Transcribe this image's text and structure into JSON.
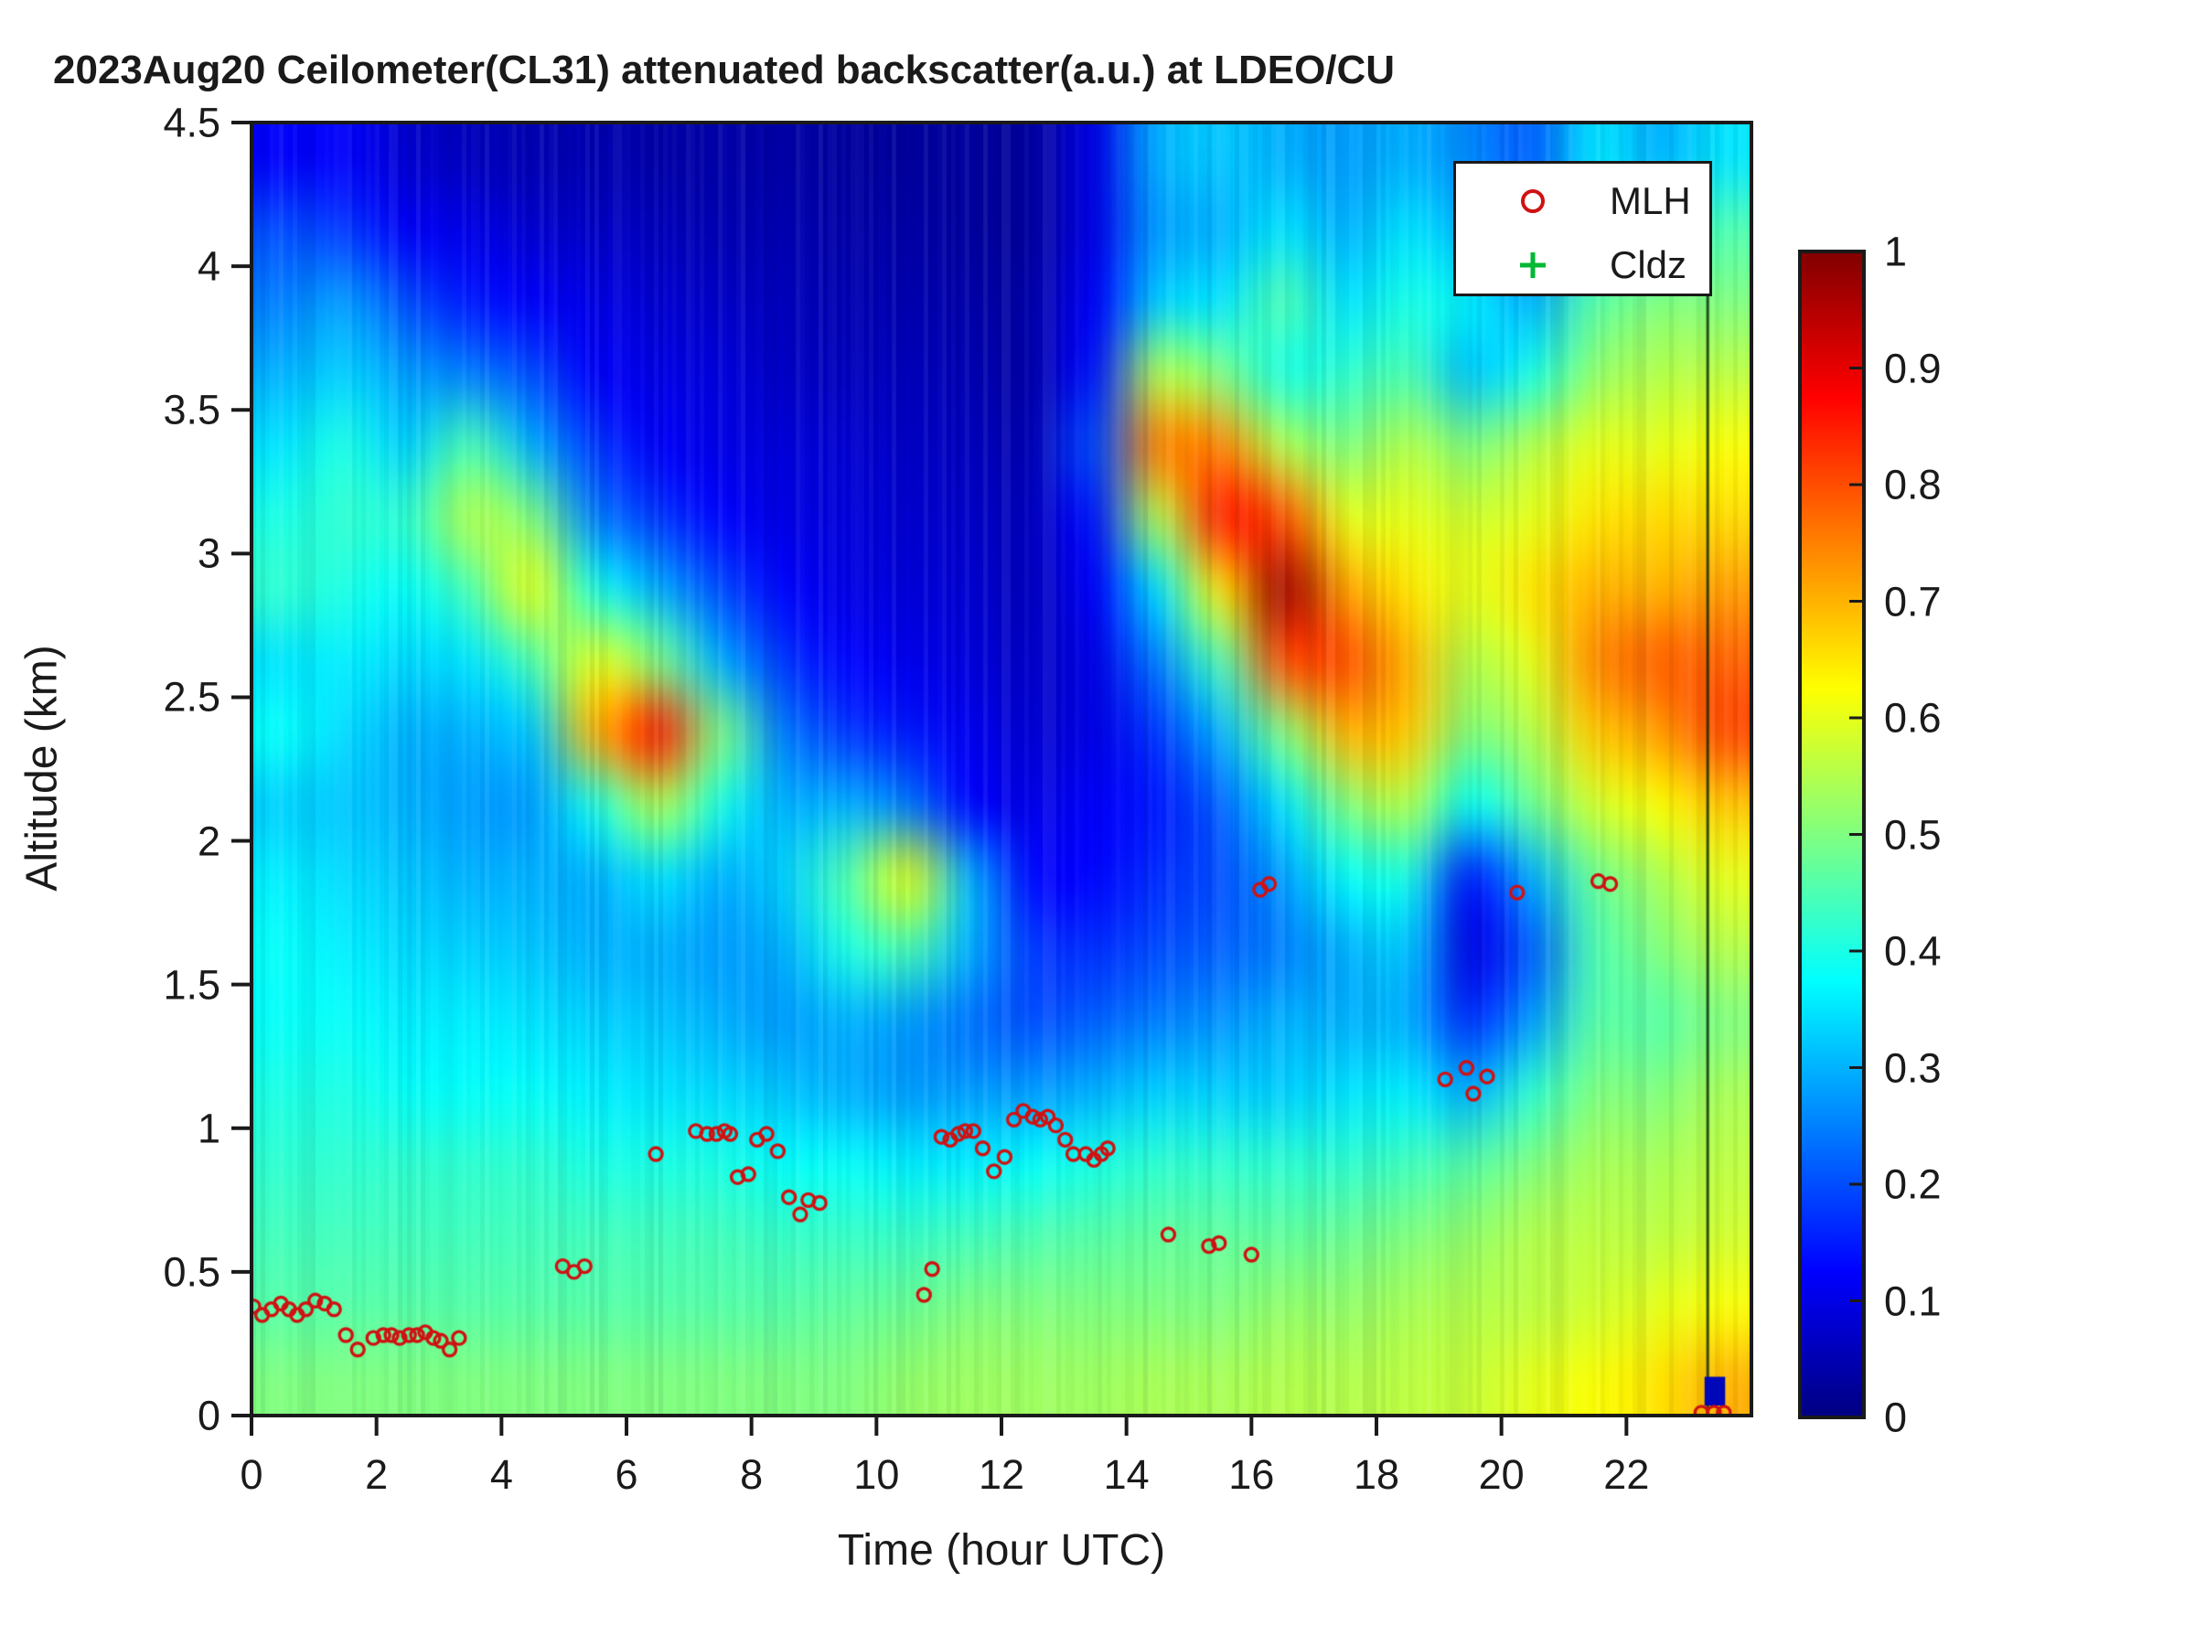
{
  "chart_data": {
    "type": "heatmap",
    "title": "2023Aug20 Ceilometer(CL31) attenuated backscatter(a.u.) at LDEO/CU",
    "xlabel": "Time (hour UTC)",
    "ylabel": "Altitude (km)",
    "xlim": [
      0,
      24
    ],
    "ylim": [
      0,
      4.5
    ],
    "x_ticks": [
      0,
      2,
      4,
      6,
      8,
      10,
      12,
      14,
      16,
      18,
      20,
      22
    ],
    "x_tick_labels": [
      "0",
      "2",
      "4",
      "6",
      "8",
      "10",
      "12",
      "14",
      "16",
      "18",
      "20",
      "22"
    ],
    "y_ticks": [
      0,
      0.5,
      1,
      1.5,
      2,
      2.5,
      3,
      3.5,
      4,
      4.5
    ],
    "y_tick_labels": [
      "0",
      "0.5",
      "1",
      "1.5",
      "2",
      "2.5",
      "3",
      "3.5",
      "4",
      "4.5"
    ],
    "grid": false,
    "colormap": "jet",
    "colorbar": {
      "min": 0,
      "max": 1,
      "ticks": [
        0,
        0.1,
        0.2,
        0.3,
        0.4,
        0.5,
        0.6,
        0.7,
        0.8,
        0.9,
        1
      ],
      "tick_labels": [
        "0",
        "0.1",
        "0.2",
        "0.3",
        "0.4",
        "0.5",
        "0.6",
        "0.7",
        "0.8",
        "0.9",
        "1"
      ]
    },
    "heatmap": {
      "note": "attenuated backscatter (a.u.) on 0-1 scale; 24 hourly columns (0-24 h UTC) x 18 altitude bins (4.5 km down to 0 km, 0.25 km steps, top first)",
      "hour_bin_edges": [
        0,
        1,
        2,
        3,
        4,
        5,
        6,
        7,
        8,
        9,
        10,
        11,
        12,
        13,
        14,
        15,
        16,
        17,
        18,
        19,
        20,
        21,
        22,
        23,
        24
      ],
      "altitude_bin_top_km": 4.5,
      "altitude_bin_step_km": 0.25,
      "columns_top_to_bottom": [
        [
          0.12,
          0.2,
          0.25,
          0.3,
          0.35,
          0.4,
          0.42,
          0.35,
          0.38,
          0.33,
          0.36,
          0.38,
          0.38,
          0.4,
          0.42,
          0.44,
          0.46,
          0.5
        ],
        [
          0.12,
          0.18,
          0.28,
          0.33,
          0.4,
          0.42,
          0.4,
          0.36,
          0.34,
          0.32,
          0.34,
          0.36,
          0.38,
          0.4,
          0.42,
          0.44,
          0.46,
          0.5
        ],
        [
          0.08,
          0.12,
          0.2,
          0.28,
          0.33,
          0.42,
          0.38,
          0.34,
          0.3,
          0.3,
          0.32,
          0.34,
          0.36,
          0.38,
          0.42,
          0.44,
          0.46,
          0.5
        ],
        [
          0.06,
          0.1,
          0.15,
          0.25,
          0.45,
          0.55,
          0.45,
          0.35,
          0.3,
          0.28,
          0.3,
          0.33,
          0.36,
          0.38,
          0.42,
          0.44,
          0.46,
          0.5
        ],
        [
          0.05,
          0.08,
          0.12,
          0.2,
          0.3,
          0.5,
          0.6,
          0.45,
          0.32,
          0.28,
          0.3,
          0.32,
          0.35,
          0.38,
          0.42,
          0.44,
          0.46,
          0.5
        ],
        [
          0.05,
          0.07,
          0.1,
          0.12,
          0.18,
          0.25,
          0.4,
          0.6,
          0.7,
          0.4,
          0.3,
          0.3,
          0.33,
          0.36,
          0.4,
          0.44,
          0.46,
          0.5
        ],
        [
          0.04,
          0.06,
          0.08,
          0.1,
          0.12,
          0.18,
          0.3,
          0.5,
          0.85,
          0.55,
          0.35,
          0.3,
          0.32,
          0.35,
          0.4,
          0.44,
          0.46,
          0.5
        ],
        [
          0.04,
          0.05,
          0.07,
          0.09,
          0.1,
          0.13,
          0.2,
          0.3,
          0.5,
          0.4,
          0.3,
          0.28,
          0.3,
          0.34,
          0.4,
          0.44,
          0.46,
          0.5
        ],
        [
          0.04,
          0.05,
          0.06,
          0.07,
          0.09,
          0.1,
          0.13,
          0.18,
          0.25,
          0.3,
          0.33,
          0.3,
          0.28,
          0.32,
          0.38,
          0.43,
          0.46,
          0.5
        ],
        [
          0.03,
          0.04,
          0.05,
          0.06,
          0.08,
          0.09,
          0.1,
          0.13,
          0.18,
          0.3,
          0.45,
          0.4,
          0.3,
          0.3,
          0.38,
          0.43,
          0.47,
          0.5
        ],
        [
          0.03,
          0.04,
          0.05,
          0.06,
          0.07,
          0.08,
          0.09,
          0.11,
          0.15,
          0.25,
          0.6,
          0.45,
          0.28,
          0.28,
          0.36,
          0.43,
          0.48,
          0.52
        ],
        [
          0.03,
          0.03,
          0.04,
          0.05,
          0.06,
          0.07,
          0.08,
          0.09,
          0.11,
          0.13,
          0.3,
          0.3,
          0.24,
          0.28,
          0.36,
          0.44,
          0.5,
          0.53
        ],
        [
          0.03,
          0.03,
          0.04,
          0.04,
          0.05,
          0.06,
          0.06,
          0.07,
          0.08,
          0.1,
          0.13,
          0.18,
          0.2,
          0.28,
          0.38,
          0.45,
          0.5,
          0.53
        ],
        [
          0.1,
          0.1,
          0.12,
          0.15,
          0.2,
          0.15,
          0.12,
          0.1,
          0.1,
          0.12,
          0.13,
          0.17,
          0.22,
          0.3,
          0.4,
          0.46,
          0.5,
          0.53
        ],
        [
          0.3,
          0.28,
          0.33,
          0.55,
          0.75,
          0.55,
          0.35,
          0.25,
          0.18,
          0.15,
          0.17,
          0.2,
          0.25,
          0.33,
          0.42,
          0.47,
          0.5,
          0.54
        ],
        [
          0.32,
          0.3,
          0.35,
          0.5,
          0.75,
          0.85,
          0.65,
          0.45,
          0.3,
          0.22,
          0.2,
          0.22,
          0.27,
          0.33,
          0.42,
          0.47,
          0.5,
          0.54
        ],
        [
          0.3,
          0.35,
          0.45,
          0.4,
          0.55,
          0.8,
          0.97,
          0.8,
          0.5,
          0.35,
          0.28,
          0.25,
          0.3,
          0.33,
          0.42,
          0.47,
          0.52,
          0.55
        ],
        [
          0.28,
          0.3,
          0.35,
          0.42,
          0.5,
          0.6,
          0.72,
          0.8,
          0.7,
          0.5,
          0.38,
          0.3,
          0.3,
          0.35,
          0.42,
          0.48,
          0.52,
          0.55
        ],
        [
          0.3,
          0.35,
          0.4,
          0.45,
          0.55,
          0.6,
          0.65,
          0.7,
          0.68,
          0.55,
          0.4,
          0.32,
          0.3,
          0.36,
          0.44,
          0.5,
          0.54,
          0.56
        ],
        [
          0.26,
          0.3,
          0.36,
          0.32,
          0.5,
          0.58,
          0.6,
          0.55,
          0.5,
          0.38,
          0.15,
          0.1,
          0.17,
          0.3,
          0.46,
          0.52,
          0.55,
          0.57
        ],
        [
          0.22,
          0.25,
          0.3,
          0.4,
          0.55,
          0.6,
          0.65,
          0.6,
          0.55,
          0.48,
          0.3,
          0.22,
          0.28,
          0.42,
          0.5,
          0.55,
          0.56,
          0.6
        ],
        [
          0.35,
          0.4,
          0.46,
          0.52,
          0.6,
          0.65,
          0.7,
          0.74,
          0.68,
          0.58,
          0.48,
          0.45,
          0.46,
          0.5,
          0.54,
          0.56,
          0.58,
          0.62
        ],
        [
          0.3,
          0.4,
          0.5,
          0.55,
          0.6,
          0.66,
          0.7,
          0.78,
          0.72,
          0.62,
          0.54,
          0.5,
          0.46,
          0.5,
          0.54,
          0.56,
          0.6,
          0.65
        ],
        [
          0.35,
          0.45,
          0.5,
          0.56,
          0.62,
          0.66,
          0.72,
          0.78,
          0.8,
          0.68,
          0.6,
          0.55,
          0.5,
          0.54,
          0.56,
          0.58,
          0.62,
          0.7
        ]
      ]
    },
    "series": [
      {
        "name": "MLH",
        "marker": "open-circle",
        "color": "#cf1212",
        "points_hour_altkm": [
          [
            0.03,
            0.38
          ],
          [
            0.17,
            0.35
          ],
          [
            0.32,
            0.37
          ],
          [
            0.47,
            0.39
          ],
          [
            0.6,
            0.37
          ],
          [
            0.73,
            0.35
          ],
          [
            0.87,
            0.37
          ],
          [
            1.02,
            0.4
          ],
          [
            1.17,
            0.39
          ],
          [
            1.32,
            0.37
          ],
          [
            1.51,
            0.28
          ],
          [
            1.7,
            0.23
          ],
          [
            1.95,
            0.27
          ],
          [
            2.11,
            0.28
          ],
          [
            2.24,
            0.28
          ],
          [
            2.37,
            0.27
          ],
          [
            2.52,
            0.28
          ],
          [
            2.65,
            0.28
          ],
          [
            2.78,
            0.29
          ],
          [
            2.91,
            0.27
          ],
          [
            3.03,
            0.26
          ],
          [
            3.17,
            0.23
          ],
          [
            3.32,
            0.27
          ],
          [
            4.98,
            0.52
          ],
          [
            5.16,
            0.5
          ],
          [
            5.33,
            0.52
          ],
          [
            6.47,
            0.91
          ],
          [
            7.11,
            0.99
          ],
          [
            7.29,
            0.98
          ],
          [
            7.44,
            0.98
          ],
          [
            7.57,
            0.99
          ],
          [
            7.66,
            0.98
          ],
          [
            7.78,
            0.83
          ],
          [
            7.95,
            0.84
          ],
          [
            8.09,
            0.96
          ],
          [
            8.24,
            0.98
          ],
          [
            8.42,
            0.92
          ],
          [
            8.6,
            0.76
          ],
          [
            8.78,
            0.7
          ],
          [
            8.91,
            0.75
          ],
          [
            9.09,
            0.74
          ],
          [
            10.76,
            0.42
          ],
          [
            10.89,
            0.51
          ],
          [
            11.04,
            0.97
          ],
          [
            11.18,
            0.96
          ],
          [
            11.31,
            0.98
          ],
          [
            11.42,
            0.99
          ],
          [
            11.55,
            0.99
          ],
          [
            11.7,
            0.93
          ],
          [
            11.88,
            0.85
          ],
          [
            12.05,
            0.9
          ],
          [
            12.2,
            1.03
          ],
          [
            12.35,
            1.06
          ],
          [
            12.5,
            1.04
          ],
          [
            12.62,
            1.03
          ],
          [
            12.74,
            1.04
          ],
          [
            12.87,
            1.01
          ],
          [
            13.02,
            0.96
          ],
          [
            13.15,
            0.91
          ],
          [
            13.35,
            0.91
          ],
          [
            13.48,
            0.89
          ],
          [
            13.6,
            0.91
          ],
          [
            13.7,
            0.93
          ],
          [
            14.67,
            0.63
          ],
          [
            15.32,
            0.59
          ],
          [
            15.48,
            0.6
          ],
          [
            16.0,
            0.56
          ],
          [
            16.14,
            1.83
          ],
          [
            16.28,
            1.85
          ],
          [
            19.1,
            1.17
          ],
          [
            19.44,
            1.21
          ],
          [
            19.55,
            1.12
          ],
          [
            19.77,
            1.18
          ],
          [
            20.25,
            1.82
          ],
          [
            21.55,
            1.86
          ],
          [
            21.74,
            1.85
          ],
          [
            23.2,
            0.01
          ],
          [
            23.4,
            0.01
          ],
          [
            23.56,
            0.01
          ]
        ]
      },
      {
        "name": "Cldz",
        "marker": "plus",
        "color": "#00b833",
        "points_hour_altkm": []
      }
    ],
    "annotations": {
      "gap_line": {
        "hour": 23.3,
        "alt_range_km": [
          0,
          3.95
        ],
        "color": "#0a2a0a"
      },
      "blue_square": {
        "hour_range": [
          23.25,
          23.58
        ],
        "alt_range_km": [
          0.035,
          0.135
        ],
        "color": "#0007b8"
      }
    },
    "legend_position": "top-right-inside"
  },
  "legend": {
    "items": [
      {
        "label": "MLH",
        "marker": "circle",
        "color": "#cf1212"
      },
      {
        "label": "Cldz",
        "marker": "plus",
        "color": "#00b833"
      }
    ]
  }
}
